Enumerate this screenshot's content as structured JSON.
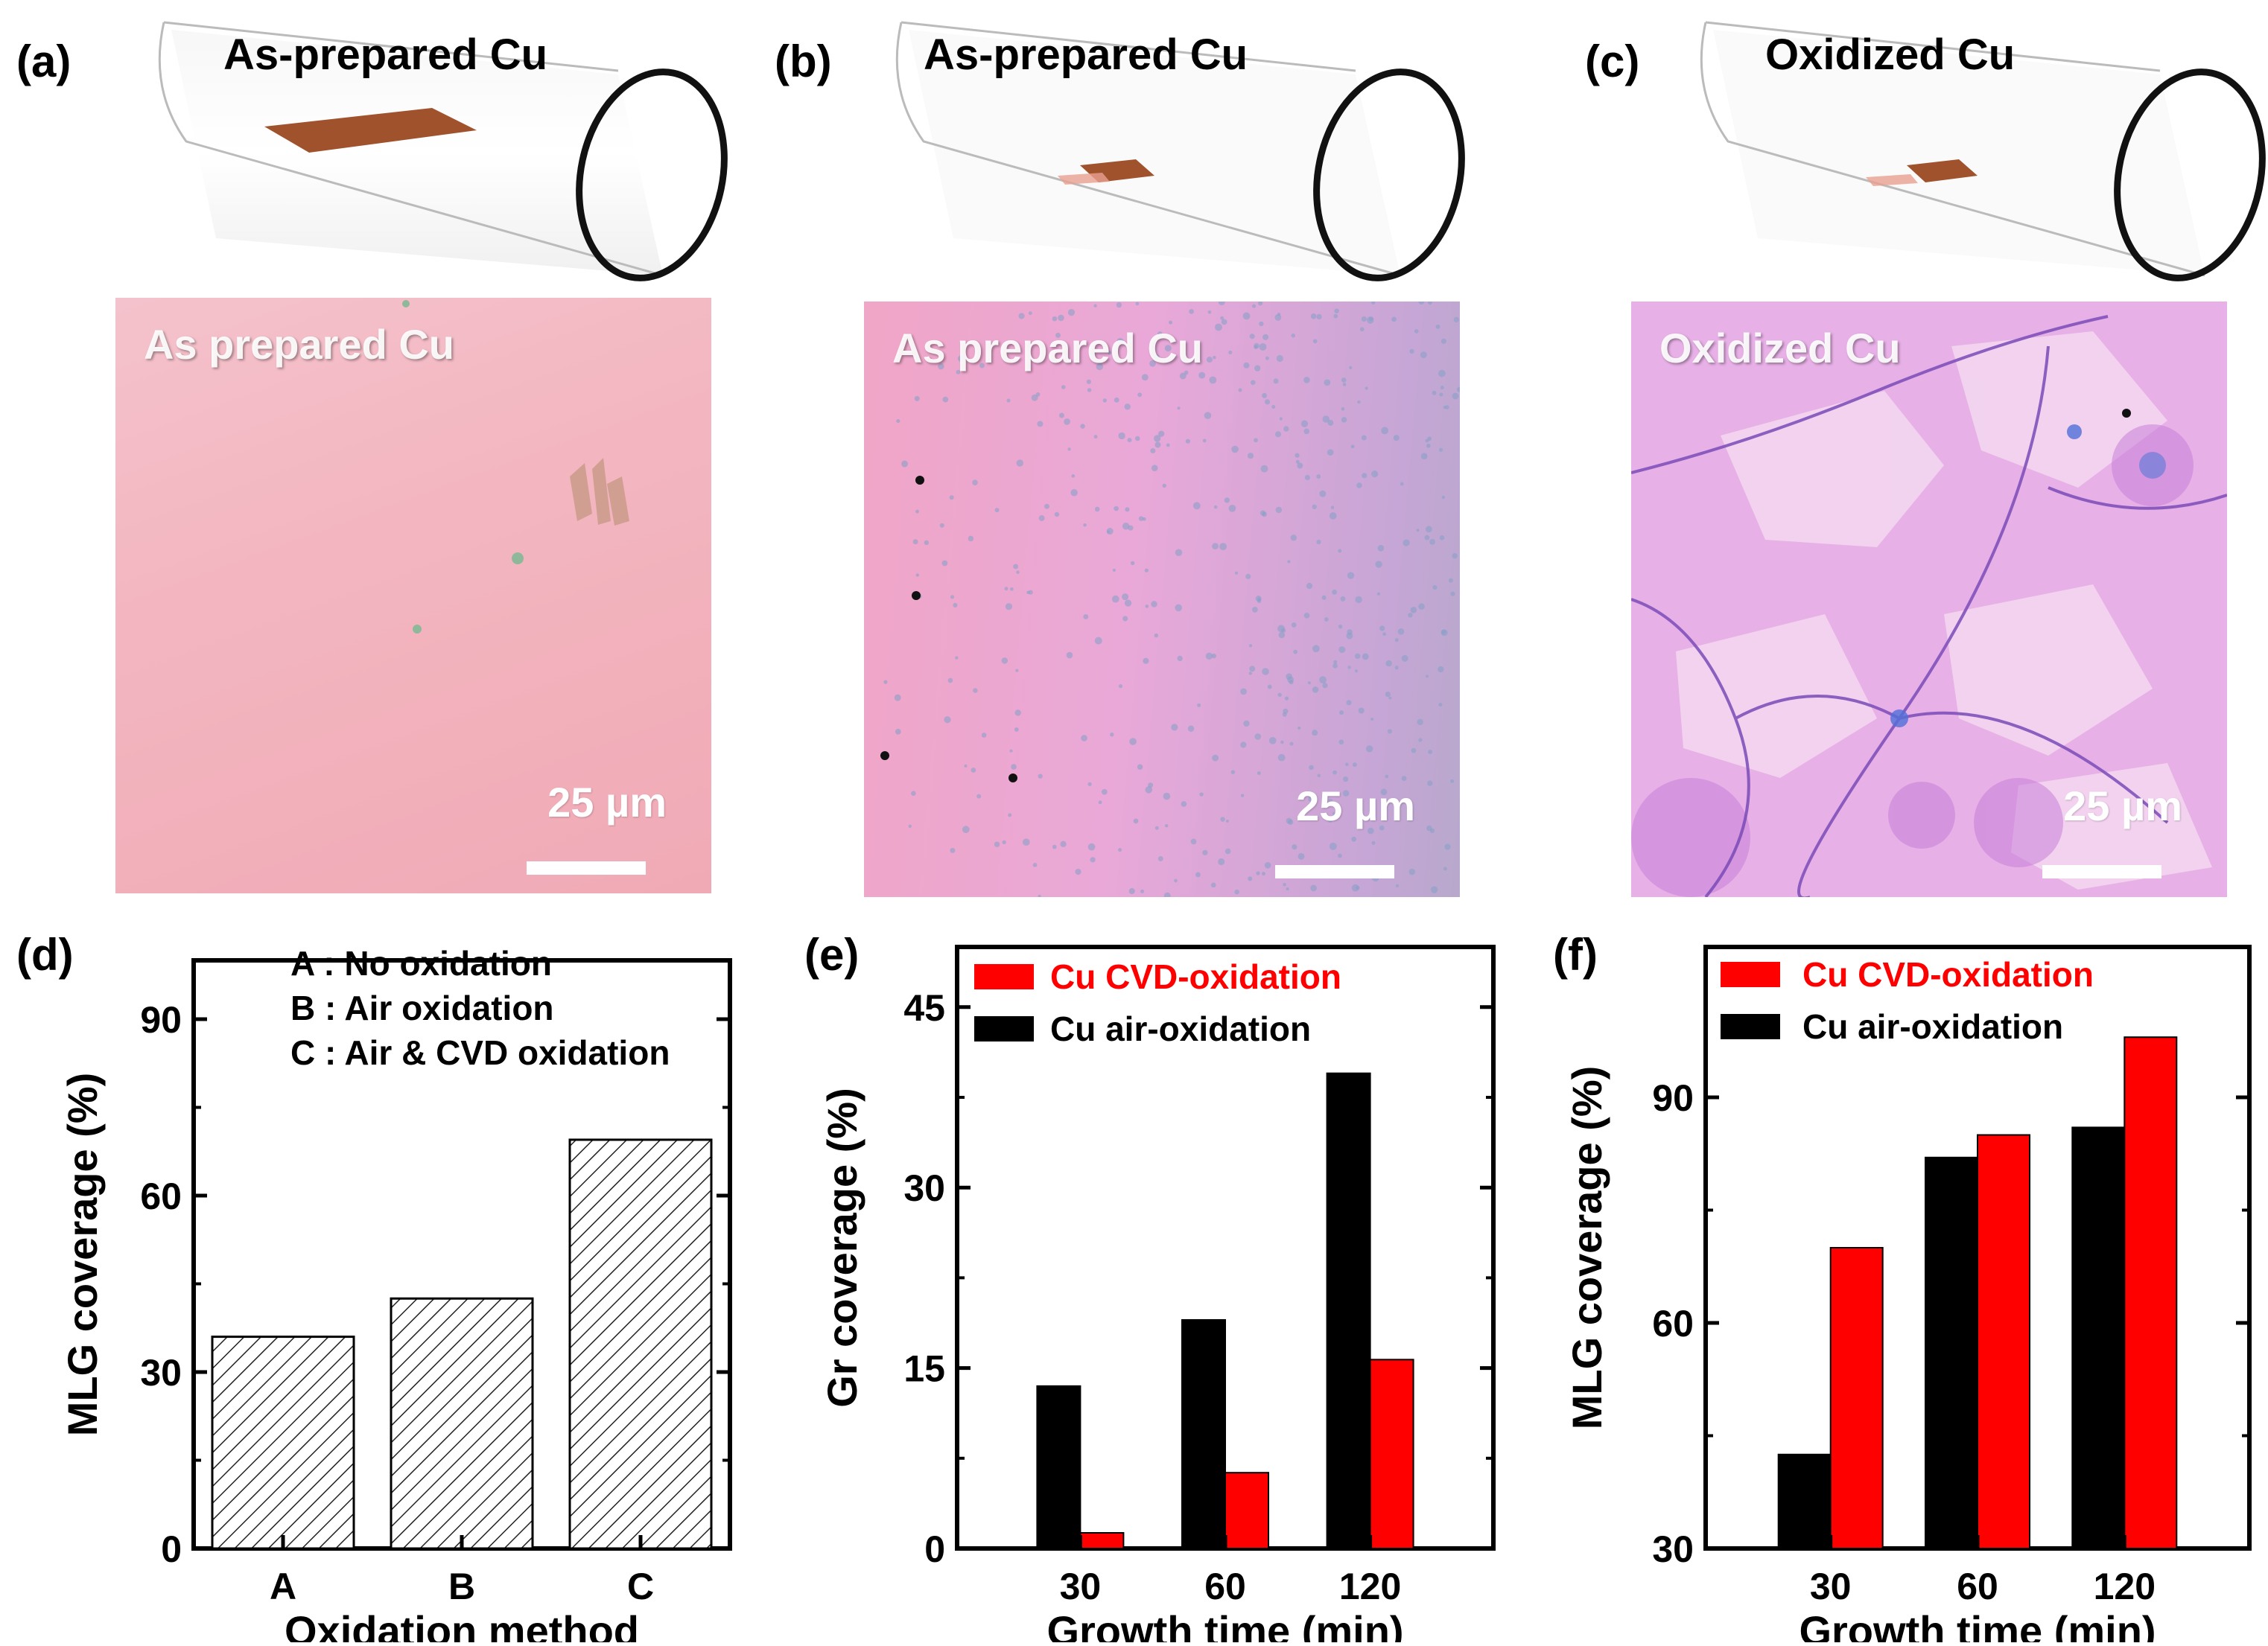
{
  "labels": {
    "a": "(a)",
    "b": "(b)",
    "c": "(c)",
    "d": "(d)",
    "e": "(e)",
    "f": "(f)"
  },
  "tubes": [
    {
      "title": "As-prepared Cu"
    },
    {
      "title": "As-prepared Cu"
    },
    {
      "title": "Oxidized Cu"
    }
  ],
  "micrographs": [
    {
      "title": "As prepared Cu",
      "scale": "25 µm"
    },
    {
      "title": "As prepared Cu",
      "scale": "25 µm"
    },
    {
      "title": "Oxidized Cu",
      "scale": "25 µm"
    }
  ],
  "colors": {
    "red": "#ff0000",
    "black": "#000000",
    "copper": "#a0522d",
    "pink_a": "#f2b8c4",
    "pink_b": "#e8a8d8",
    "pink_c": "#e0a8e8"
  },
  "chart_data": [
    {
      "type": "bar",
      "ylabel": "MLG coverage (%)",
      "xlabel": "Oxidation method",
      "categories": [
        "A",
        "B",
        "C"
      ],
      "values": [
        36,
        42.5,
        69.5
      ],
      "ylim": [
        0,
        100
      ],
      "yticks": [
        0,
        30,
        60,
        90
      ],
      "ytick_labels": [
        "0",
        "30",
        "60",
        "90"
      ],
      "legend": [
        "A : No oxidation",
        "B : Air oxidation",
        "C : Air & CVD oxidation"
      ],
      "fill": "hatched"
    },
    {
      "type": "bar",
      "ylabel": "Gr coverage (%)",
      "xlabel": "Growth time (min)",
      "categories": [
        "30",
        "60",
        "120"
      ],
      "ylim": [
        0,
        50
      ],
      "yticks": [
        0,
        15,
        30,
        45
      ],
      "ytick_labels": [
        "0",
        "15",
        "30",
        "45"
      ],
      "series": [
        {
          "name": "Cu air-oxidation",
          "color": "#000000",
          "values": [
            13.5,
            19,
            39.5
          ]
        },
        {
          "name": "Cu CVD-oxidation",
          "color": "#ff0000",
          "values": [
            1.3,
            6.3,
            15.7
          ]
        }
      ],
      "legend_order": [
        "Cu CVD-oxidation",
        "Cu air-oxidation"
      ],
      "legend_position": "top-left"
    },
    {
      "type": "bar",
      "ylabel": "MLG coverage (%)",
      "xlabel": "Growth time (min)",
      "categories": [
        "30",
        "60",
        "120"
      ],
      "ylim": [
        30,
        110
      ],
      "yticks": [
        30,
        60,
        90
      ],
      "ytick_labels": [
        "30",
        "60",
        "90"
      ],
      "series": [
        {
          "name": "Cu air-oxidation",
          "color": "#000000",
          "values": [
            42.5,
            82,
            86
          ]
        },
        {
          "name": "Cu CVD-oxidation",
          "color": "#ff0000",
          "values": [
            70,
            85,
            98
          ]
        }
      ],
      "legend_order": [
        "Cu CVD-oxidation",
        "Cu air-oxidation"
      ],
      "legend_position": "top-left"
    }
  ]
}
